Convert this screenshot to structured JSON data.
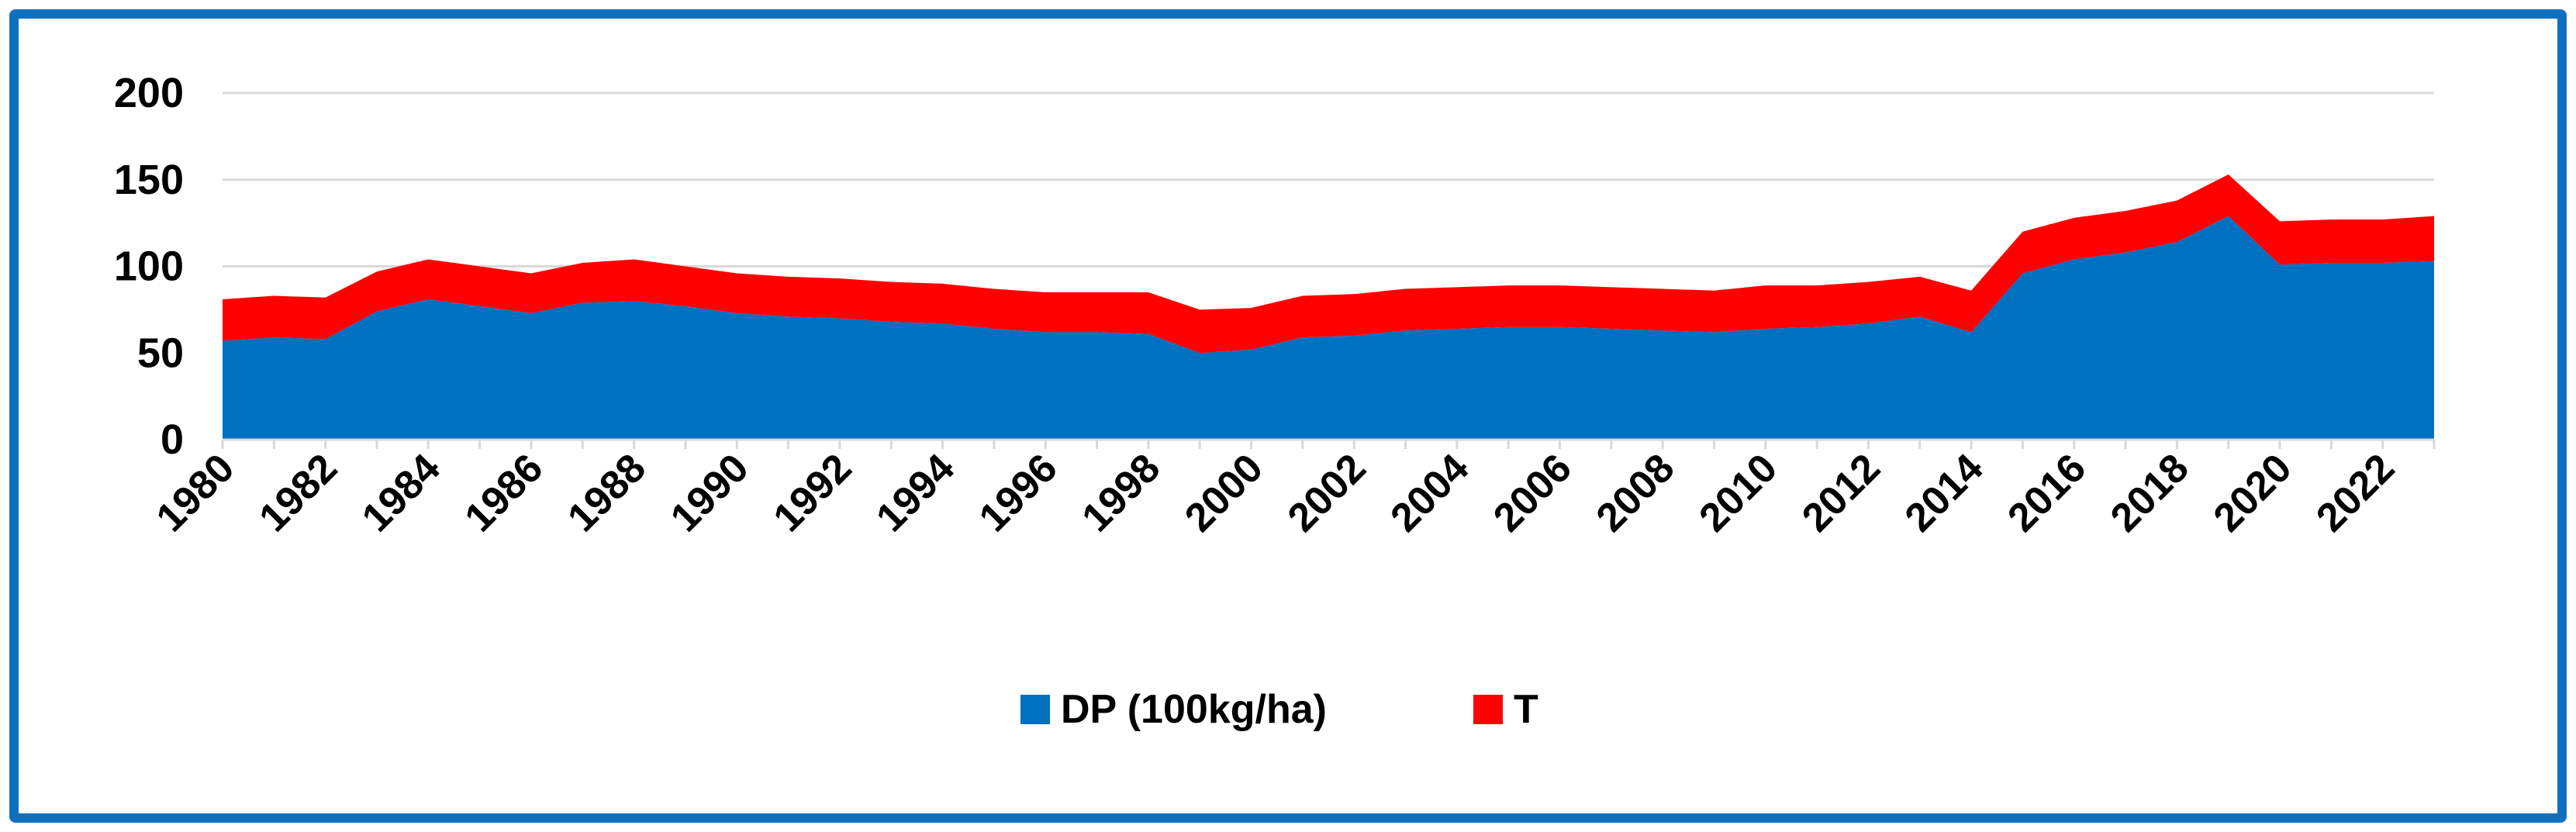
{
  "colors": {
    "frame": "#1070C0",
    "dp": "#0070C0",
    "t": "#FF0000",
    "grid": "#D9D9D9",
    "axis": "#D9D9D9"
  },
  "chart_data": {
    "type": "area",
    "stacked": true,
    "title": "",
    "xlabel": "",
    "ylabel": "",
    "ylim": [
      0,
      200
    ],
    "yticks": [
      0,
      50,
      100,
      150,
      200
    ],
    "x": [
      1980,
      1981,
      1982,
      1983,
      1984,
      1985,
      1986,
      1987,
      1988,
      1989,
      1990,
      1991,
      1992,
      1993,
      1994,
      1995,
      1996,
      1997,
      1998,
      1999,
      2000,
      2001,
      2002,
      2003,
      2004,
      2005,
      2006,
      2007,
      2008,
      2009,
      2010,
      2011,
      2012,
      2013,
      2014,
      2015,
      2016,
      2017,
      2018,
      2019,
      2020,
      2021,
      2022,
      2023
    ],
    "xtick_labels": [
      "1980",
      "1982",
      "1984",
      "1986",
      "1988",
      "1990",
      "1992",
      "1994",
      "1996",
      "1998",
      "2000",
      "2002",
      "2004",
      "2006",
      "2008",
      "2010",
      "2012",
      "2014",
      "2016",
      "2018",
      "2020",
      "2022"
    ],
    "grid": true,
    "legend_position": "bottom-center",
    "series": [
      {
        "name": "DP (100kg/ha)",
        "color": "#0070C0",
        "values": [
          57,
          59,
          58,
          74,
          81,
          77,
          73,
          79,
          80,
          77,
          73,
          71,
          70,
          68,
          67,
          64,
          62,
          62,
          61,
          50,
          52,
          59,
          60,
          63,
          64,
          65,
          65,
          64,
          63,
          62,
          64,
          65,
          67,
          71,
          62,
          96,
          104,
          108,
          114,
          129,
          101,
          102,
          102,
          103
        ]
      },
      {
        "name": "T",
        "color": "#FF0000",
        "values": [
          24,
          24,
          24,
          23,
          23,
          23,
          23,
          23,
          24,
          23,
          23,
          23,
          23,
          23,
          23,
          23,
          23,
          23,
          24,
          25,
          24,
          24,
          24,
          24,
          24,
          24,
          24,
          24,
          24,
          24,
          25,
          24,
          24,
          23,
          24,
          24,
          24,
          24,
          24,
          24,
          25,
          25,
          25,
          26
        ]
      }
    ]
  }
}
